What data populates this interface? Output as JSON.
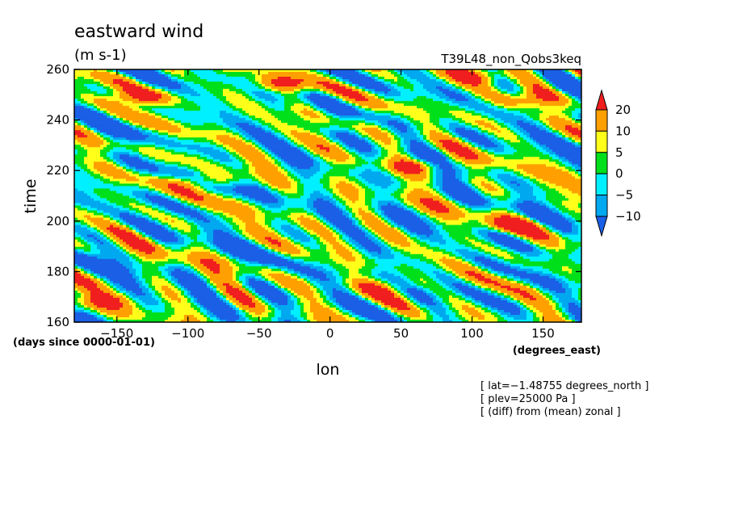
{
  "chart_data": {
    "type": "heatmap",
    "title": "eastward wind",
    "units": "(m s-1)",
    "run_name": "T39L48_non_Qobs3keq",
    "xlabel": "lon",
    "ylabel": "time",
    "x_unit": "(degrees_east)",
    "y_unit": "(days since 0000-01-01)",
    "xlim": [
      -180,
      177
    ],
    "ylim": [
      160,
      260
    ],
    "x_ticks": [
      -150,
      -100,
      -50,
      0,
      50,
      100,
      150
    ],
    "x_tick_labels": [
      "−150",
      "−100",
      "−50",
      "0",
      "50",
      "100",
      "150"
    ],
    "y_ticks": [
      160,
      180,
      200,
      220,
      240,
      260
    ],
    "y_tick_labels": [
      "160",
      "180",
      "200",
      "220",
      "240",
      "260"
    ],
    "colorbar": {
      "levels": [
        -10,
        -5,
        0,
        5,
        10,
        20
      ],
      "level_labels": [
        "−10",
        "−5",
        "0",
        "5",
        "10",
        "20"
      ],
      "colors": [
        "#1a5fe6",
        "#00a8f0",
        "#00f0ff",
        "#00e01a",
        "#ffff1a",
        "#ffa000",
        "#f01e1e"
      ],
      "extend": "both"
    },
    "notes": [
      "[ lat=−1.48755 degrees_north ]",
      "[ plev=25000 Pa ]",
      "[ (diff) from (mean) zonal ]"
    ],
    "hotspots": [
      {
        "lon": -135,
        "time": 249,
        "u": 22
      },
      {
        "lon": -35,
        "time": 254,
        "u": 22
      },
      {
        "lon": 105,
        "time": 258,
        "u": 22
      },
      {
        "lon": 65,
        "time": 222,
        "u": 20
      },
      {
        "lon": -88,
        "time": 216,
        "u": 18
      },
      {
        "lon": 125,
        "time": 198,
        "u": 20
      },
      {
        "lon": 135,
        "time": 248,
        "u": 18
      },
      {
        "lon": -160,
        "time": 168,
        "u": 16
      },
      {
        "lon": 40,
        "time": 174,
        "u": 15
      }
    ]
  }
}
